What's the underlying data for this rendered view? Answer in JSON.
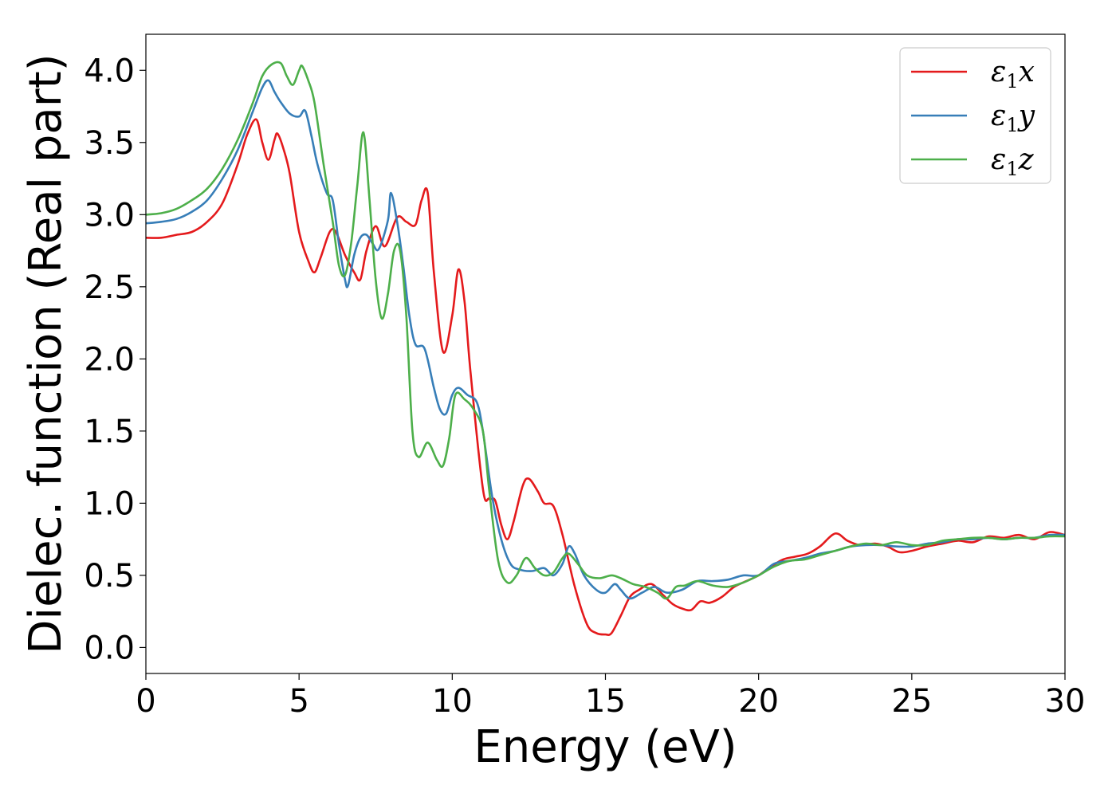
{
  "chart_data": {
    "type": "line",
    "title": "",
    "xlabel": "Energy (eV)",
    "ylabel": "Dielec. function (Real part)",
    "xlim": [
      0,
      30
    ],
    "ylim": [
      -0.18,
      4.25
    ],
    "xticks": [
      0,
      5,
      10,
      15,
      20,
      25,
      30
    ],
    "yticks": [
      0.0,
      0.5,
      1.0,
      1.5,
      2.0,
      2.5,
      3.0,
      3.5,
      4.0
    ],
    "xtick_labels": [
      "0",
      "5",
      "10",
      "15",
      "20",
      "25",
      "30"
    ],
    "ytick_labels": [
      "0.0",
      "0.5",
      "1.0",
      "1.5",
      "2.0",
      "2.5",
      "3.0",
      "3.5",
      "4.0"
    ],
    "grid": false,
    "legend_position": "top-right",
    "series": [
      {
        "name": "ε1x",
        "legend_symbol": "ε",
        "legend_sub": "1",
        "legend_var": "x",
        "color": "#e41a1c",
        "points": [
          [
            0,
            2.84
          ],
          [
            0.5,
            2.84
          ],
          [
            1,
            2.86
          ],
          [
            1.5,
            2.88
          ],
          [
            2,
            2.95
          ],
          [
            2.5,
            3.08
          ],
          [
            3,
            3.35
          ],
          [
            3.3,
            3.55
          ],
          [
            3.6,
            3.66
          ],
          [
            3.8,
            3.5
          ],
          [
            4.0,
            3.38
          ],
          [
            4.2,
            3.52
          ],
          [
            4.3,
            3.56
          ],
          [
            4.5,
            3.45
          ],
          [
            4.7,
            3.28
          ],
          [
            5.0,
            2.88
          ],
          [
            5.3,
            2.68
          ],
          [
            5.5,
            2.6
          ],
          [
            5.7,
            2.7
          ],
          [
            6.0,
            2.88
          ],
          [
            6.2,
            2.88
          ],
          [
            6.5,
            2.72
          ],
          [
            6.8,
            2.6
          ],
          [
            7.0,
            2.55
          ],
          [
            7.2,
            2.75
          ],
          [
            7.5,
            2.92
          ],
          [
            7.8,
            2.78
          ],
          [
            8.2,
            2.98
          ],
          [
            8.5,
            2.95
          ],
          [
            8.8,
            2.93
          ],
          [
            9.0,
            3.1
          ],
          [
            9.2,
            3.15
          ],
          [
            9.4,
            2.6
          ],
          [
            9.7,
            2.05
          ],
          [
            10.0,
            2.3
          ],
          [
            10.2,
            2.62
          ],
          [
            10.4,
            2.4
          ],
          [
            10.6,
            1.9
          ],
          [
            11.0,
            1.1
          ],
          [
            11.2,
            1.03
          ],
          [
            11.4,
            1.02
          ],
          [
            11.6,
            0.85
          ],
          [
            11.8,
            0.75
          ],
          [
            12.0,
            0.87
          ],
          [
            12.3,
            1.12
          ],
          [
            12.5,
            1.17
          ],
          [
            12.8,
            1.08
          ],
          [
            13.0,
            1.0
          ],
          [
            13.3,
            0.98
          ],
          [
            13.6,
            0.78
          ],
          [
            14.0,
            0.42
          ],
          [
            14.4,
            0.16
          ],
          [
            14.7,
            0.1
          ],
          [
            15.0,
            0.09
          ],
          [
            15.2,
            0.1
          ],
          [
            15.5,
            0.22
          ],
          [
            15.8,
            0.35
          ],
          [
            16.1,
            0.4
          ],
          [
            16.5,
            0.44
          ],
          [
            16.9,
            0.36
          ],
          [
            17.2,
            0.3
          ],
          [
            17.5,
            0.27
          ],
          [
            17.8,
            0.26
          ],
          [
            18.1,
            0.32
          ],
          [
            18.4,
            0.31
          ],
          [
            18.8,
            0.35
          ],
          [
            19.2,
            0.42
          ],
          [
            19.6,
            0.46
          ],
          [
            20.0,
            0.5
          ],
          [
            20.4,
            0.56
          ],
          [
            20.8,
            0.61
          ],
          [
            21.2,
            0.63
          ],
          [
            21.6,
            0.65
          ],
          [
            22.0,
            0.7
          ],
          [
            22.5,
            0.79
          ],
          [
            22.9,
            0.74
          ],
          [
            23.3,
            0.71
          ],
          [
            23.8,
            0.72
          ],
          [
            24.2,
            0.7
          ],
          [
            24.6,
            0.66
          ],
          [
            25.0,
            0.67
          ],
          [
            25.5,
            0.7
          ],
          [
            26.0,
            0.72
          ],
          [
            26.5,
            0.74
          ],
          [
            27.0,
            0.73
          ],
          [
            27.5,
            0.77
          ],
          [
            28.0,
            0.76
          ],
          [
            28.5,
            0.78
          ],
          [
            29.0,
            0.75
          ],
          [
            29.5,
            0.8
          ],
          [
            30.0,
            0.78
          ]
        ]
      },
      {
        "name": "ε1y",
        "legend_symbol": "ε",
        "legend_sub": "1",
        "legend_var": "y",
        "color": "#377eb8",
        "points": [
          [
            0,
            2.94
          ],
          [
            0.5,
            2.95
          ],
          [
            1,
            2.97
          ],
          [
            1.5,
            3.02
          ],
          [
            2,
            3.1
          ],
          [
            2.5,
            3.25
          ],
          [
            3,
            3.45
          ],
          [
            3.5,
            3.72
          ],
          [
            3.8,
            3.88
          ],
          [
            4.0,
            3.93
          ],
          [
            4.2,
            3.85
          ],
          [
            4.4,
            3.78
          ],
          [
            4.7,
            3.7
          ],
          [
            5.0,
            3.68
          ],
          [
            5.2,
            3.72
          ],
          [
            5.4,
            3.55
          ],
          [
            5.6,
            3.35
          ],
          [
            5.9,
            3.15
          ],
          [
            6.1,
            3.1
          ],
          [
            6.3,
            2.8
          ],
          [
            6.5,
            2.55
          ],
          [
            6.6,
            2.51
          ],
          [
            6.8,
            2.72
          ],
          [
            7.0,
            2.84
          ],
          [
            7.2,
            2.86
          ],
          [
            7.4,
            2.8
          ],
          [
            7.6,
            2.76
          ],
          [
            7.9,
            2.96
          ],
          [
            8.0,
            3.15
          ],
          [
            8.2,
            2.95
          ],
          [
            8.4,
            2.65
          ],
          [
            8.6,
            2.3
          ],
          [
            8.8,
            2.1
          ],
          [
            9.1,
            2.07
          ],
          [
            9.4,
            1.8
          ],
          [
            9.6,
            1.65
          ],
          [
            9.8,
            1.62
          ],
          [
            10.0,
            1.75
          ],
          [
            10.2,
            1.8
          ],
          [
            10.5,
            1.75
          ],
          [
            10.8,
            1.7
          ],
          [
            11.0,
            1.5
          ],
          [
            11.3,
            1.05
          ],
          [
            11.6,
            0.75
          ],
          [
            11.9,
            0.58
          ],
          [
            12.2,
            0.54
          ],
          [
            12.6,
            0.53
          ],
          [
            13.0,
            0.55
          ],
          [
            13.3,
            0.5
          ],
          [
            13.6,
            0.58
          ],
          [
            13.8,
            0.7
          ],
          [
            14.0,
            0.65
          ],
          [
            14.3,
            0.5
          ],
          [
            14.7,
            0.4
          ],
          [
            15.0,
            0.38
          ],
          [
            15.3,
            0.44
          ],
          [
            15.5,
            0.4
          ],
          [
            15.8,
            0.34
          ],
          [
            16.2,
            0.38
          ],
          [
            16.6,
            0.42
          ],
          [
            17.0,
            0.38
          ],
          [
            17.5,
            0.4
          ],
          [
            18.0,
            0.46
          ],
          [
            18.5,
            0.46
          ],
          [
            19.0,
            0.47
          ],
          [
            19.5,
            0.5
          ],
          [
            20.0,
            0.5
          ],
          [
            20.5,
            0.58
          ],
          [
            21.0,
            0.6
          ],
          [
            21.5,
            0.62
          ],
          [
            22.0,
            0.65
          ],
          [
            22.5,
            0.67
          ],
          [
            23.0,
            0.7
          ],
          [
            23.5,
            0.71
          ],
          [
            24.0,
            0.71
          ],
          [
            24.5,
            0.7
          ],
          [
            25.0,
            0.7
          ],
          [
            25.5,
            0.72
          ],
          [
            26.0,
            0.73
          ],
          [
            26.5,
            0.75
          ],
          [
            27.0,
            0.75
          ],
          [
            27.5,
            0.76
          ],
          [
            28.0,
            0.75
          ],
          [
            28.5,
            0.76
          ],
          [
            29.0,
            0.76
          ],
          [
            29.5,
            0.78
          ],
          [
            30.0,
            0.78
          ]
        ]
      },
      {
        "name": "ε1z",
        "legend_symbol": "ε",
        "legend_sub": "1",
        "legend_var": "z",
        "color": "#4daf4a",
        "points": [
          [
            0,
            3.0
          ],
          [
            0.5,
            3.01
          ],
          [
            1,
            3.04
          ],
          [
            1.5,
            3.1
          ],
          [
            2,
            3.18
          ],
          [
            2.5,
            3.32
          ],
          [
            3,
            3.52
          ],
          [
            3.5,
            3.78
          ],
          [
            3.8,
            3.96
          ],
          [
            4.1,
            4.04
          ],
          [
            4.4,
            4.05
          ],
          [
            4.6,
            3.96
          ],
          [
            4.8,
            3.9
          ],
          [
            5.0,
            4.0
          ],
          [
            5.1,
            4.03
          ],
          [
            5.3,
            3.93
          ],
          [
            5.5,
            3.78
          ],
          [
            5.8,
            3.35
          ],
          [
            6.1,
            2.95
          ],
          [
            6.3,
            2.65
          ],
          [
            6.5,
            2.58
          ],
          [
            6.7,
            2.8
          ],
          [
            6.9,
            3.2
          ],
          [
            7.1,
            3.57
          ],
          [
            7.3,
            3.1
          ],
          [
            7.5,
            2.55
          ],
          [
            7.7,
            2.28
          ],
          [
            7.9,
            2.45
          ],
          [
            8.1,
            2.75
          ],
          [
            8.3,
            2.75
          ],
          [
            8.5,
            2.3
          ],
          [
            8.7,
            1.5
          ],
          [
            8.9,
            1.32
          ],
          [
            9.2,
            1.42
          ],
          [
            9.5,
            1.3
          ],
          [
            9.7,
            1.26
          ],
          [
            9.9,
            1.45
          ],
          [
            10.1,
            1.75
          ],
          [
            10.4,
            1.72
          ],
          [
            10.7,
            1.65
          ],
          [
            11.0,
            1.5
          ],
          [
            11.2,
            1.1
          ],
          [
            11.5,
            0.6
          ],
          [
            11.8,
            0.45
          ],
          [
            12.1,
            0.5
          ],
          [
            12.4,
            0.62
          ],
          [
            12.7,
            0.55
          ],
          [
            13.0,
            0.5
          ],
          [
            13.3,
            0.52
          ],
          [
            13.6,
            0.62
          ],
          [
            13.8,
            0.65
          ],
          [
            14.1,
            0.58
          ],
          [
            14.4,
            0.5
          ],
          [
            14.8,
            0.48
          ],
          [
            15.2,
            0.5
          ],
          [
            15.5,
            0.48
          ],
          [
            15.9,
            0.44
          ],
          [
            16.3,
            0.42
          ],
          [
            16.7,
            0.38
          ],
          [
            17.0,
            0.34
          ],
          [
            17.3,
            0.42
          ],
          [
            17.6,
            0.43
          ],
          [
            18.0,
            0.46
          ],
          [
            18.5,
            0.43
          ],
          [
            19.0,
            0.42
          ],
          [
            19.5,
            0.45
          ],
          [
            20.0,
            0.5
          ],
          [
            20.5,
            0.56
          ],
          [
            21.0,
            0.6
          ],
          [
            21.5,
            0.61
          ],
          [
            22.0,
            0.64
          ],
          [
            22.5,
            0.67
          ],
          [
            23.0,
            0.7
          ],
          [
            23.5,
            0.72
          ],
          [
            24.0,
            0.71
          ],
          [
            24.5,
            0.73
          ],
          [
            25.0,
            0.71
          ],
          [
            25.5,
            0.71
          ],
          [
            26.0,
            0.74
          ],
          [
            26.5,
            0.75
          ],
          [
            27.0,
            0.76
          ],
          [
            27.5,
            0.76
          ],
          [
            28.0,
            0.75
          ],
          [
            28.5,
            0.76
          ],
          [
            29.0,
            0.76
          ],
          [
            29.5,
            0.77
          ],
          [
            30.0,
            0.77
          ]
        ]
      }
    ]
  }
}
